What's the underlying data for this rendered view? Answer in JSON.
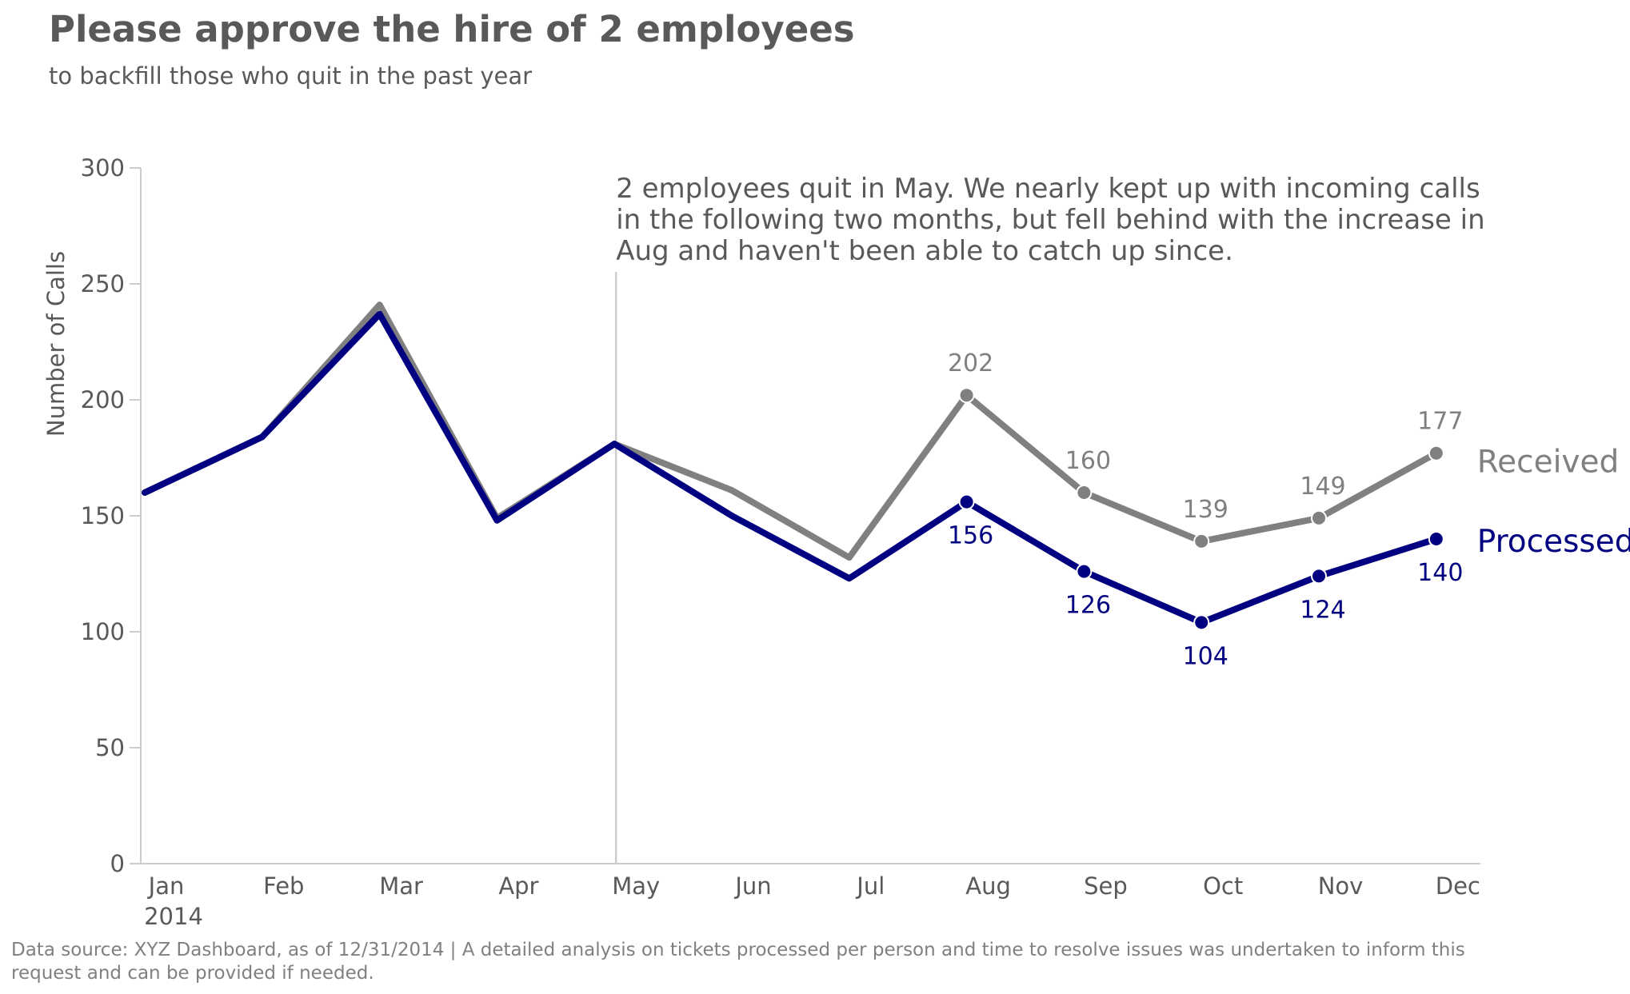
{
  "header": {
    "title": "Please approve the hire of 2 employees",
    "subtitle": "to backfill those who quit in the past year"
  },
  "footer": {
    "note": "Data source: XYZ Dashboard, as of 12/31/2014 | A detailed analysis on tickets processed per person and time to resolve issues was undertaken to inform this request and can be provided if needed."
  },
  "colors": {
    "received": "#808080",
    "processed": "#000080",
    "axis": "#cccccc",
    "text": "#595959"
  },
  "chart_data": {
    "type": "line",
    "title": "Please approve the hire of 2 employees",
    "subtitle": "to backfill those who quit in the past year",
    "xlabel": "",
    "ylabel": "Number of Calls",
    "categories": [
      "Jan",
      "Feb",
      "Mar",
      "Apr",
      "May",
      "Jun",
      "Jul",
      "Aug",
      "Sep",
      "Oct",
      "Nov",
      "Dec"
    ],
    "year_label": "2014",
    "ylim": [
      0,
      300
    ],
    "yticks": [
      0,
      50,
      100,
      150,
      200,
      250,
      300
    ],
    "grid": false,
    "series": [
      {
        "name": "Received",
        "color": "#808080",
        "values": [
          160,
          184,
          241,
          149,
          181,
          161,
          132,
          202,
          160,
          139,
          149,
          177
        ],
        "labeled_from_index": 7
      },
      {
        "name": "Processed",
        "color": "#000080",
        "values": [
          160,
          184,
          237,
          148,
          181,
          150,
          123,
          156,
          126,
          104,
          124,
          140
        ],
        "labeled_from_index": 7
      }
    ],
    "annotation": {
      "at_category": "May",
      "lines": [
        "2 employees quit in May. We nearly kept up with incoming calls",
        "in the following two months, but fell behind with the increase in",
        "Aug and haven't been able to catch up since."
      ]
    }
  }
}
